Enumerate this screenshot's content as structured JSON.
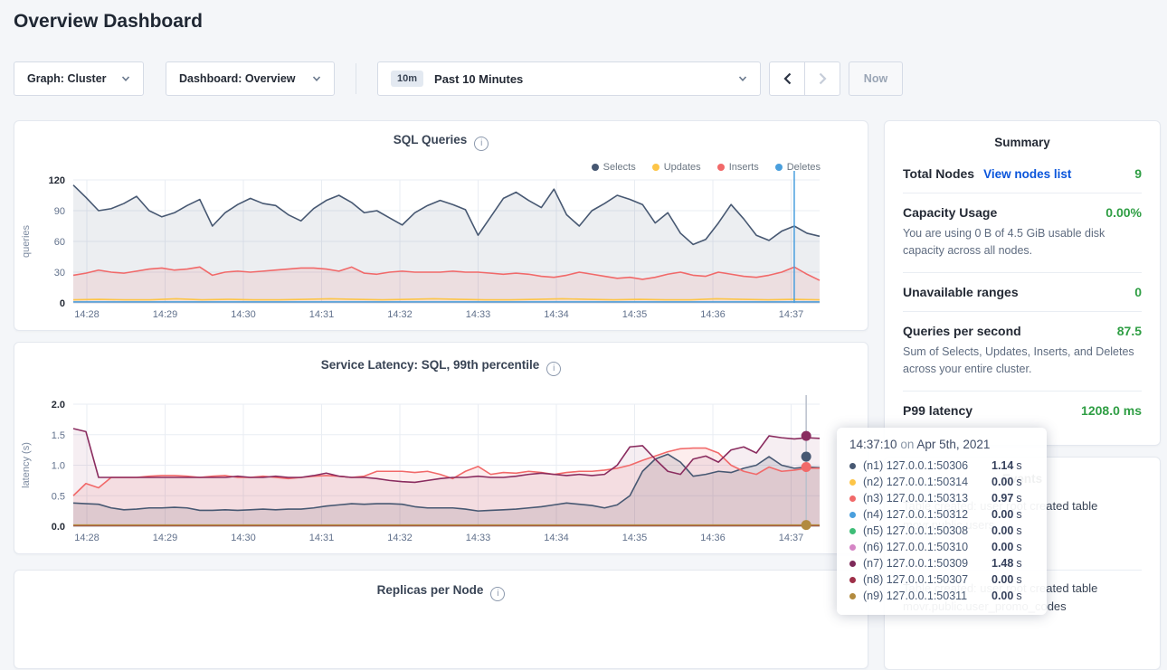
{
  "page_title": "Overview Dashboard",
  "toolbar": {
    "graph_dropdown": "Graph: Cluster",
    "dashboard_dropdown": "Dashboard: Overview",
    "time_badge": "10m",
    "time_label": "Past 10 Minutes",
    "now_label": "Now"
  },
  "summary": {
    "title": "Summary",
    "value_color": "#2f9e44",
    "link_color": "#0a55db",
    "rows": [
      {
        "label": "Total Nodes",
        "link": "View nodes list",
        "value": "9"
      },
      {
        "label": "Capacity Usage",
        "value": "0.00%",
        "description": "You are using 0 B of 4.5 GiB usable disk capacity across all nodes."
      },
      {
        "label": "Unavailable ranges",
        "value": "0"
      },
      {
        "label": "Queries per second",
        "value": "87.5",
        "description": "Sum of Selects, Updates, Inserts, and Deletes across your entire cluster."
      },
      {
        "label": "P99 latency",
        "value": "1208.0 ms"
      }
    ]
  },
  "events": {
    "title": "Events",
    "items": [
      {
        "text": "Table created: user root created table movr.public.users"
      },
      {
        "text": "Table created: user root created table movr.public.user_promo_codes"
      }
    ]
  },
  "tooltip": {
    "time": "14:37:10",
    "on": "on",
    "date": "Apr 5th, 2021",
    "rows": [
      {
        "color": "#475872",
        "label": "(n1) 127.0.0.1:50306",
        "value": "1.14",
        "unit": "s"
      },
      {
        "color": "#fdc548",
        "label": "(n2) 127.0.0.1:50314",
        "value": "0.00",
        "unit": "s"
      },
      {
        "color": "#f16969",
        "label": "(n3) 127.0.0.1:50313",
        "value": "0.97",
        "unit": "s"
      },
      {
        "color": "#4a9fdd",
        "label": "(n4) 127.0.0.1:50312",
        "value": "0.00",
        "unit": "s"
      },
      {
        "color": "#3ebd77",
        "label": "(n5) 127.0.0.1:50308",
        "value": "0.00",
        "unit": "s"
      },
      {
        "color": "#d585c5",
        "label": "(n6) 127.0.0.1:50310",
        "value": "0.00",
        "unit": "s"
      },
      {
        "color": "#7d2959",
        "label": "(n7) 127.0.0.1:50309",
        "value": "1.48",
        "unit": "s"
      },
      {
        "color": "#9e2f49",
        "label": "(n8) 127.0.0.1:50307",
        "value": "0.00",
        "unit": "s"
      },
      {
        "color": "#b28a3e",
        "label": "(n9) 127.0.0.1:50311",
        "value": "0.00",
        "unit": "s"
      }
    ]
  },
  "chart_data": [
    {
      "type": "line",
      "title": "SQL Queries",
      "ylabel": "queries",
      "ylim": [
        0,
        120
      ],
      "yticks": [
        0,
        30,
        60,
        90,
        120
      ],
      "ytick_labels": [
        "0",
        "30",
        "60",
        "90",
        "120"
      ],
      "x_ticks": [
        "14:28",
        "14:29",
        "14:30",
        "14:31",
        "14:32",
        "14:33",
        "14:34",
        "14:35",
        "14:36",
        "14:37"
      ],
      "legend_items": [
        {
          "label": "Selects",
          "color": "#475872"
        },
        {
          "label": "Updates",
          "color": "#fdc548"
        },
        {
          "label": "Inserts",
          "color": "#f16969"
        },
        {
          "label": "Deletes",
          "color": "#4a9fdd"
        }
      ],
      "series": [
        {
          "name": "Selects",
          "color": "#475872",
          "fill": "rgba(71,88,114,0.10)",
          "values": [
            115,
            103,
            90,
            92,
            97,
            104,
            90,
            84,
            88,
            95,
            101,
            75,
            88,
            96,
            102,
            97,
            95,
            86,
            80,
            92,
            100,
            105,
            98,
            88,
            90,
            83,
            76,
            88,
            95,
            100,
            96,
            91,
            66,
            84,
            102,
            108,
            100,
            93,
            111,
            86,
            75,
            90,
            97,
            105,
            101,
            96,
            78,
            88,
            68,
            57,
            62,
            78,
            96,
            82,
            66,
            61,
            70,
            75,
            68,
            65
          ]
        },
        {
          "name": "Inserts",
          "color": "#f16969",
          "fill": "rgba(241,105,105,0.12)",
          "values": [
            27,
            29,
            32,
            30,
            29,
            31,
            33,
            34,
            32,
            33,
            35,
            27,
            30,
            31,
            30,
            31,
            32,
            33,
            34,
            34,
            33,
            31,
            35,
            29,
            28,
            30,
            31,
            30,
            30,
            30,
            31,
            30,
            30,
            29,
            28,
            29,
            28,
            26,
            25,
            27,
            30,
            28,
            26,
            24,
            25,
            23,
            25,
            28,
            30,
            27,
            26,
            30,
            28,
            26,
            25,
            27,
            30,
            35,
            28,
            22
          ]
        },
        {
          "name": "Updates",
          "color": "#fdc548",
          "values": [
            3,
            3.5,
            3,
            3,
            4,
            3,
            3.5,
            3,
            3,
            3.5,
            4,
            3.5,
            3,
            3.5,
            4,
            3.5,
            3,
            3,
            3.5,
            4,
            3.5,
            3,
            3.5,
            3,
            3,
            4,
            3.5,
            3,
            3.5,
            3
          ]
        },
        {
          "name": "Deletes",
          "color": "#4a9fdd",
          "values": [
            1,
            1
          ]
        }
      ],
      "hover": {
        "x_frac": 0.966,
        "line_color": "#4a9fde",
        "dots": []
      }
    },
    {
      "type": "line",
      "title": "Service Latency: SQL, 99th percentile",
      "ylabel": "latency (s)",
      "ylim": [
        0,
        2
      ],
      "yticks": [
        0,
        0.5,
        1.0,
        1.5,
        2.0
      ],
      "ytick_labels": [
        "0.0",
        "0.5",
        "1.0",
        "1.5",
        "2.0"
      ],
      "x_ticks": [
        "14:28",
        "14:29",
        "14:30",
        "14:31",
        "14:32",
        "14:33",
        "14:34",
        "14:35",
        "14:36",
        "14:37"
      ],
      "series": [
        {
          "name": "(n1) 127.0.0.1:50306",
          "color": "#475872",
          "fill": "rgba(71,88,114,0.15)",
          "values": [
            0.38,
            0.37,
            0.36,
            0.3,
            0.27,
            0.28,
            0.3,
            0.3,
            0.31,
            0.3,
            0.26,
            0.26,
            0.27,
            0.26,
            0.27,
            0.28,
            0.27,
            0.28,
            0.28,
            0.3,
            0.33,
            0.35,
            0.37,
            0.36,
            0.37,
            0.37,
            0.36,
            0.32,
            0.3,
            0.3,
            0.3,
            0.28,
            0.25,
            0.26,
            0.27,
            0.28,
            0.3,
            0.32,
            0.35,
            0.38,
            0.36,
            0.34,
            0.3,
            0.35,
            0.5,
            0.9,
            1.1,
            1.18,
            1.05,
            0.82,
            0.85,
            0.9,
            0.88,
            0.95,
            1.0,
            1.14,
            1.0,
            0.95,
            0.97,
            0.96
          ]
        },
        {
          "name": "(n3) 127.0.0.1:50313",
          "color": "#f16969",
          "fill": "rgba(241,105,105,0.12)",
          "values": [
            0.5,
            0.7,
            0.63,
            0.8,
            0.8,
            0.8,
            0.82,
            0.83,
            0.83,
            0.82,
            0.8,
            0.82,
            0.83,
            0.8,
            0.8,
            0.82,
            0.8,
            0.78,
            0.8,
            0.82,
            0.83,
            0.82,
            0.8,
            0.82,
            0.9,
            0.9,
            0.9,
            0.88,
            0.9,
            0.85,
            0.78,
            0.9,
            0.98,
            0.85,
            0.88,
            0.87,
            0.9,
            0.88,
            0.85,
            0.88,
            0.9,
            0.9,
            0.92,
            0.95,
            1.0,
            1.08,
            1.15,
            1.22,
            1.27,
            1.28,
            1.28,
            1.2,
            1.0,
            0.9,
            0.85,
            0.97,
            0.9,
            0.92,
            0.95,
            0.95
          ]
        },
        {
          "name": "(n7) 127.0.0.1:50309",
          "color": "#8a2c5f",
          "fill": "rgba(138,44,95,0.08)",
          "values": [
            1.6,
            1.55,
            0.8,
            0.8,
            0.8,
            0.8,
            0.8,
            0.8,
            0.8,
            0.8,
            0.8,
            0.8,
            0.8,
            0.82,
            0.8,
            0.8,
            0.82,
            0.8,
            0.8,
            0.83,
            0.87,
            0.82,
            0.8,
            0.8,
            0.78,
            0.75,
            0.73,
            0.72,
            0.75,
            0.78,
            0.8,
            0.8,
            0.82,
            0.8,
            0.8,
            0.82,
            0.85,
            0.87,
            0.85,
            0.83,
            0.85,
            0.83,
            0.85,
            1.0,
            1.3,
            1.32,
            1.1,
            0.9,
            0.85,
            1.1,
            1.15,
            1.05,
            1.25,
            1.3,
            1.2,
            1.48,
            1.45,
            1.43,
            1.45,
            1.44
          ]
        },
        {
          "name": "(n2) 127.0.0.1:50314",
          "color": "#fdc548",
          "values": [
            0.01,
            0.01
          ]
        },
        {
          "name": "(n4) 127.0.0.1:50312",
          "color": "#4a9fdd",
          "values": [
            0.01,
            0.01
          ]
        },
        {
          "name": "(n5) 127.0.0.1:50308",
          "color": "#3ebd77",
          "values": [
            0.01,
            0.01
          ]
        },
        {
          "name": "(n6) 127.0.0.1:50310",
          "color": "#d585c5",
          "values": [
            0.01,
            0.01
          ]
        },
        {
          "name": "(n8) 127.0.0.1:50307",
          "color": "#9e2f49",
          "values": [
            0.01,
            0.01
          ]
        },
        {
          "name": "(n9) 127.0.0.1:50311",
          "color": "#b28a3e",
          "values": [
            0.02,
            0.02
          ]
        }
      ],
      "hover": {
        "x_frac": 0.982,
        "line_color": "#b9c0cc",
        "dots": [
          {
            "color": "#8a2c5f",
            "value": 1.48
          },
          {
            "color": "#475872",
            "value": 1.14
          },
          {
            "color": "#f16969",
            "value": 0.97
          },
          {
            "color": "#b28a3e",
            "value": 0.02
          }
        ]
      }
    },
    {
      "type": "line",
      "title": "Replicas per Node",
      "title_only": true
    }
  ]
}
